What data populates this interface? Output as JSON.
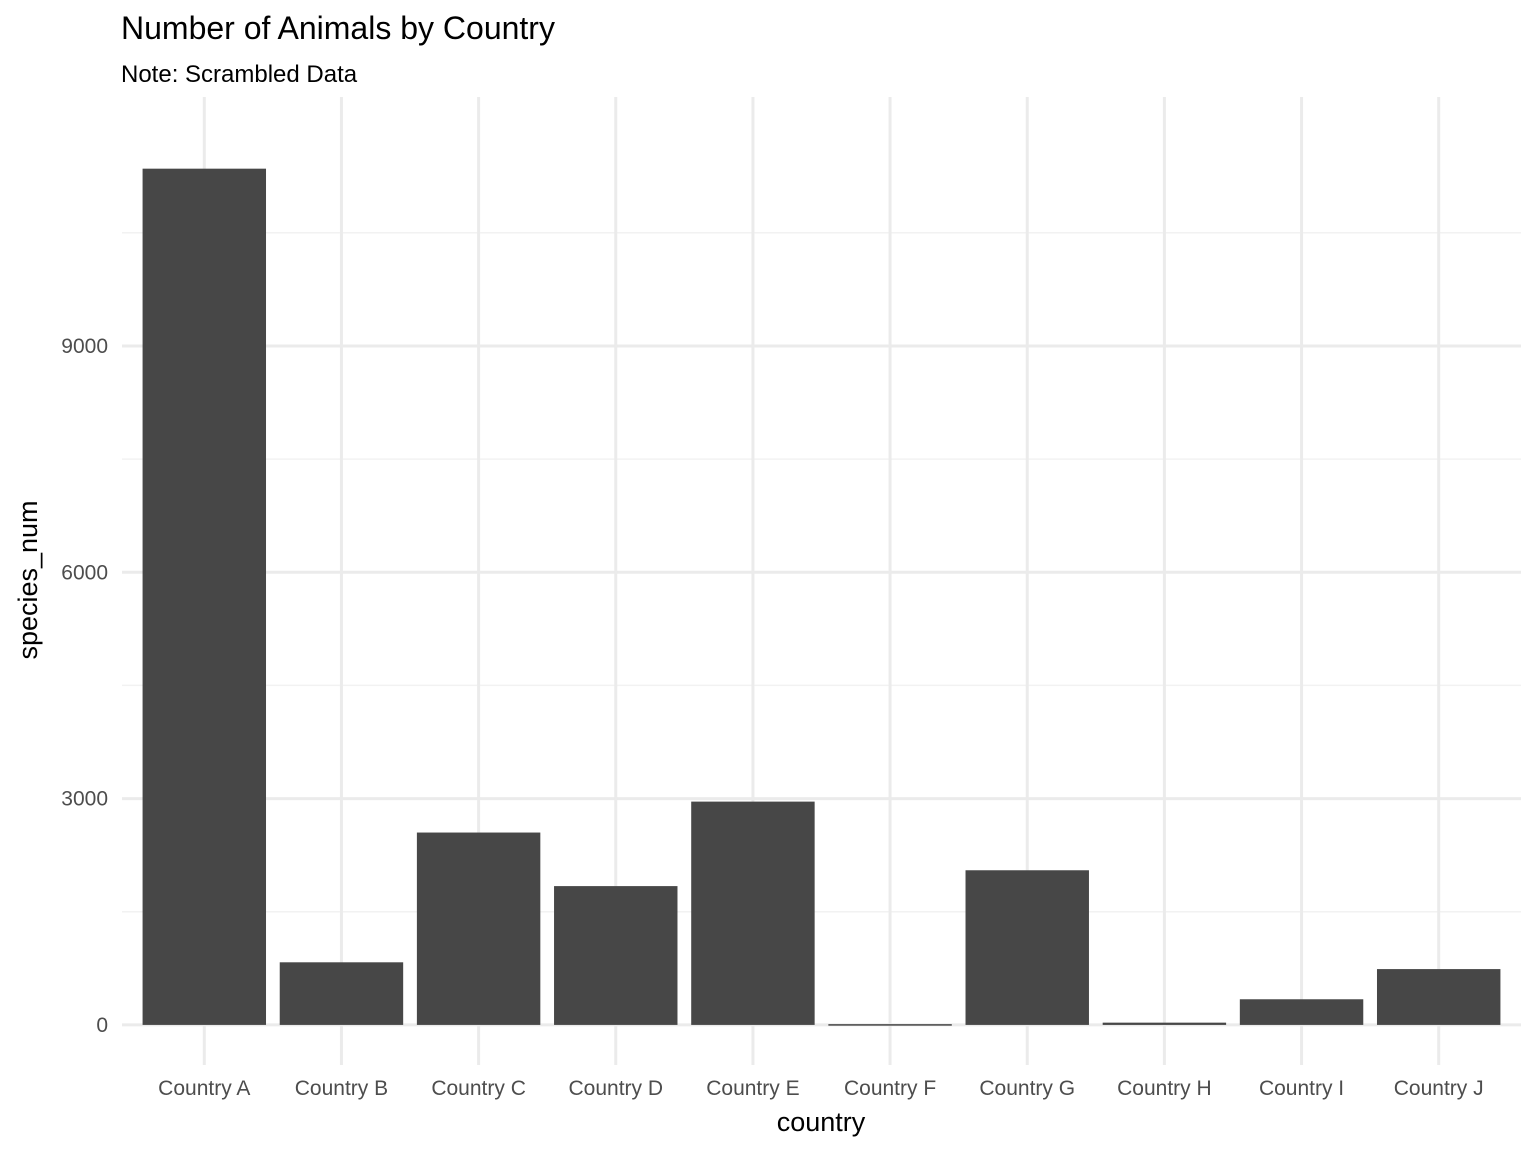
{
  "chart_data": {
    "type": "bar",
    "title": "Number of Animals by Country",
    "subtitle": "Note: Scrambled Data",
    "xlabel": "country",
    "ylabel": "species_num",
    "categories": [
      "Country A",
      "Country B",
      "Country C",
      "Country D",
      "Country E",
      "Country F",
      "Country G",
      "Country H",
      "Country I",
      "Country J"
    ],
    "values": [
      11350,
      830,
      2550,
      1840,
      2960,
      10,
      2050,
      30,
      340,
      740
    ],
    "ylim": [
      -200,
      12300
    ],
    "yticks": [
      0,
      3000,
      6000,
      9000
    ],
    "ytick_labels": [
      "0",
      "3000",
      "6000",
      "9000"
    ],
    "grid": true,
    "legend": "none",
    "colors": {
      "bar": "#474747",
      "grid_major": "#ebebeb",
      "grid_minor": "#f2f2f2",
      "tick_text": "#4d4d4d"
    }
  }
}
